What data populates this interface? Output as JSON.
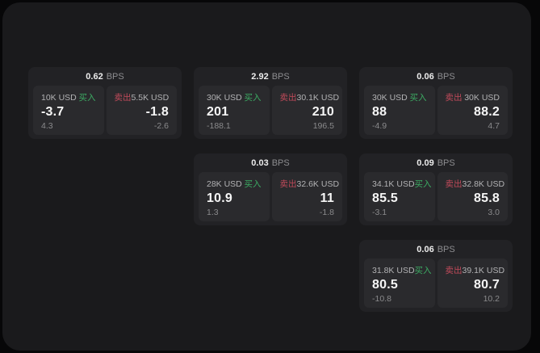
{
  "labels": {
    "bps": "BPS",
    "buy": "买入",
    "sell": "卖出"
  },
  "colors": {
    "buy_accent": "#3cab63",
    "sell_accent": "#c04a5a",
    "panel_bg": "#1a1a1c",
    "card_bg": "#222225",
    "pane_bg": "#2a2a2d"
  },
  "cards": [
    {
      "bps": "0.62",
      "col": 1,
      "row": 1,
      "buy": {
        "usd": "10K USD",
        "value": "-3.7",
        "sub": "4.3"
      },
      "sell": {
        "usd": "5.5K USD",
        "value": "-1.8",
        "sub": "-2.6"
      }
    },
    {
      "bps": "2.92",
      "col": 2,
      "row": 1,
      "buy": {
        "usd": "30K USD",
        "value": "201",
        "sub": "-188.1"
      },
      "sell": {
        "usd": "30.1K USD",
        "value": "210",
        "sub": "196.5"
      }
    },
    {
      "bps": "0.06",
      "col": 3,
      "row": 1,
      "buy": {
        "usd": "30K USD",
        "value": "88",
        "sub": "-4.9"
      },
      "sell": {
        "usd": "30K USD",
        "value": "88.2",
        "sub": "4.7"
      }
    },
    {
      "bps": "0.03",
      "col": 2,
      "row": 2,
      "buy": {
        "usd": "28K USD",
        "value": "10.9",
        "sub": "1.3"
      },
      "sell": {
        "usd": "32.6K USD",
        "value": "11",
        "sub": "-1.8"
      }
    },
    {
      "bps": "0.09",
      "col": 3,
      "row": 2,
      "buy": {
        "usd": "34.1K USD",
        "value": "85.5",
        "sub": "-3.1"
      },
      "sell": {
        "usd": "32.8K USD",
        "value": "85.8",
        "sub": "3.0"
      }
    },
    {
      "bps": "0.06",
      "col": 3,
      "row": 3,
      "buy": {
        "usd": "31.8K USD",
        "value": "80.5",
        "sub": "-10.8"
      },
      "sell": {
        "usd": "39.1K USD",
        "value": "80.7",
        "sub": "10.2"
      }
    }
  ]
}
